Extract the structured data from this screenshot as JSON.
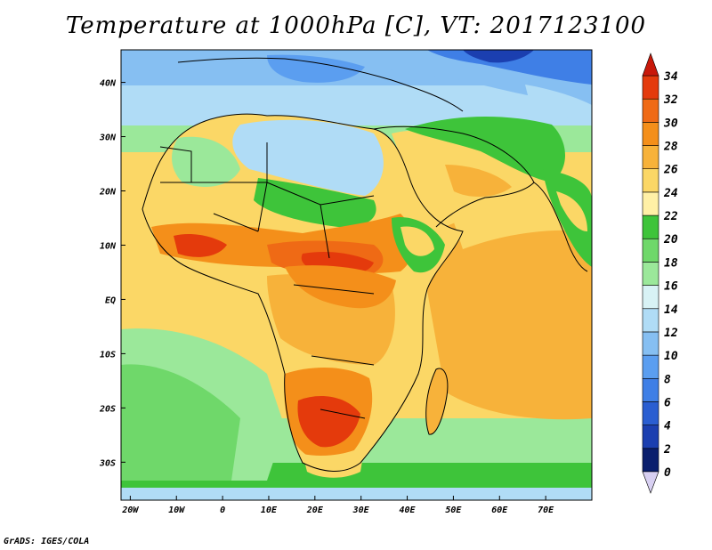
{
  "title": "Temperature at 1000hPa [C], VT: 2017123100",
  "footer": "GrADS: IGES/COLA",
  "map": {
    "lon_range": [
      -22,
      80
    ],
    "lat_range": [
      -37,
      46
    ],
    "lon_ticks": [
      {
        "value": -20,
        "label": "20W"
      },
      {
        "value": -10,
        "label": "10W"
      },
      {
        "value": 0,
        "label": "0"
      },
      {
        "value": 10,
        "label": "10E"
      },
      {
        "value": 20,
        "label": "20E"
      },
      {
        "value": 30,
        "label": "30E"
      },
      {
        "value": 40,
        "label": "40E"
      },
      {
        "value": 50,
        "label": "50E"
      },
      {
        "value": 60,
        "label": "60E"
      },
      {
        "value": 70,
        "label": "70E"
      }
    ],
    "lat_ticks": [
      {
        "value": 40,
        "label": "40N"
      },
      {
        "value": 30,
        "label": "30N"
      },
      {
        "value": 20,
        "label": "20N"
      },
      {
        "value": 10,
        "label": "10N"
      },
      {
        "value": 0,
        "label": "EQ"
      },
      {
        "value": -10,
        "label": "10S"
      },
      {
        "value": -20,
        "label": "20S"
      },
      {
        "value": -30,
        "label": "30S"
      }
    ]
  },
  "colorbar": {
    "levels": [
      "0",
      "2",
      "4",
      "6",
      "8",
      "10",
      "12",
      "14",
      "16",
      "18",
      "20",
      "22",
      "24",
      "26",
      "28",
      "30",
      "32",
      "34"
    ],
    "colors": [
      "#0a1f6e",
      "#1b3fb0",
      "#2a5ed1",
      "#3f7fe6",
      "#5b9ef0",
      "#86bff2",
      "#b0dcf6",
      "#d8f2f5",
      "#9be89a",
      "#6fd86a",
      "#3ec43a",
      "#fff0a6",
      "#fbd766",
      "#f7b23a",
      "#f48f1a",
      "#ef6a15",
      "#e43a0c"
    ],
    "over_color": "#c8180a",
    "under_color": "#d8d0f2"
  }
}
